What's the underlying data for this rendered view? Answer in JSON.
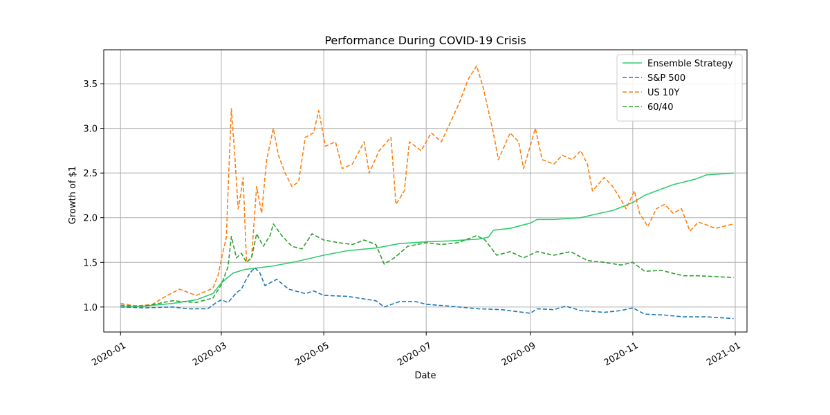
{
  "chart_data": {
    "type": "line",
    "title": "Performance During COVID-19 Crisis",
    "xlabel": "Date",
    "ylabel": "Growth of $1",
    "xlim": [
      "2019-12-22",
      "2021-01-08"
    ],
    "ylim": [
      0.72,
      3.88
    ],
    "x_ticks": [
      "2020-01-01",
      "2020-03-01",
      "2020-05-01",
      "2020-07-01",
      "2020-09-01",
      "2020-11-01",
      "2021-01-01"
    ],
    "x_tick_labels": [
      "2020-01",
      "2020-03",
      "2020-05",
      "2020-07",
      "2020-09",
      "2020-11",
      "2021-01"
    ],
    "y_ticks": [
      1.0,
      1.5,
      2.0,
      2.5,
      3.0,
      3.5
    ],
    "y_tick_labels": [
      "1.0",
      "1.5",
      "2.0",
      "2.5",
      "3.0",
      "3.5"
    ],
    "grid": true,
    "legend_position": "upper right",
    "series": [
      {
        "name": "Ensemble Strategy",
        "color": "#2ecc71",
        "dash": "solid",
        "points": [
          [
            "2020-01-01",
            1.0
          ],
          [
            "2020-01-15",
            1.01
          ],
          [
            "2020-02-01",
            1.04
          ],
          [
            "2020-02-15",
            1.08
          ],
          [
            "2020-02-25",
            1.15
          ],
          [
            "2020-03-01",
            1.27
          ],
          [
            "2020-03-08",
            1.38
          ],
          [
            "2020-03-15",
            1.42
          ],
          [
            "2020-04-01",
            1.46
          ],
          [
            "2020-04-15",
            1.51
          ],
          [
            "2020-05-01",
            1.58
          ],
          [
            "2020-05-15",
            1.63
          ],
          [
            "2020-06-01",
            1.66
          ],
          [
            "2020-06-15",
            1.71
          ],
          [
            "2020-07-01",
            1.73
          ],
          [
            "2020-07-15",
            1.74
          ],
          [
            "2020-08-01",
            1.76
          ],
          [
            "2020-08-07",
            1.78
          ],
          [
            "2020-08-10",
            1.86
          ],
          [
            "2020-08-20",
            1.88
          ],
          [
            "2020-09-01",
            1.94
          ],
          [
            "2020-09-05",
            1.98
          ],
          [
            "2020-09-15",
            1.98
          ],
          [
            "2020-10-01",
            2.0
          ],
          [
            "2020-10-10",
            2.04
          ],
          [
            "2020-10-20",
            2.08
          ],
          [
            "2020-11-01",
            2.17
          ],
          [
            "2020-11-08",
            2.25
          ],
          [
            "2020-11-15",
            2.3
          ],
          [
            "2020-11-25",
            2.37
          ],
          [
            "2020-12-08",
            2.43
          ],
          [
            "2020-12-15",
            2.48
          ],
          [
            "2020-12-31",
            2.5
          ]
        ]
      },
      {
        "name": "S&P 500",
        "color": "#1f77b4",
        "dash": "dashed",
        "points": [
          [
            "2020-01-01",
            1.0
          ],
          [
            "2020-01-15",
            0.99
          ],
          [
            "2020-02-01",
            1.0
          ],
          [
            "2020-02-10",
            0.98
          ],
          [
            "2020-02-22",
            0.98
          ],
          [
            "2020-02-27",
            1.05
          ],
          [
            "2020-03-01",
            1.08
          ],
          [
            "2020-03-05",
            1.05
          ],
          [
            "2020-03-10",
            1.16
          ],
          [
            "2020-03-13",
            1.2
          ],
          [
            "2020-03-15",
            1.28
          ],
          [
            "2020-03-18",
            1.38
          ],
          [
            "2020-03-21",
            1.44
          ],
          [
            "2020-03-24",
            1.38
          ],
          [
            "2020-03-27",
            1.24
          ],
          [
            "2020-03-31",
            1.28
          ],
          [
            "2020-04-03",
            1.31
          ],
          [
            "2020-04-10",
            1.2
          ],
          [
            "2020-04-20",
            1.15
          ],
          [
            "2020-04-25",
            1.18
          ],
          [
            "2020-05-01",
            1.13
          ],
          [
            "2020-05-15",
            1.12
          ],
          [
            "2020-06-01",
            1.07
          ],
          [
            "2020-06-06",
            1.0
          ],
          [
            "2020-06-15",
            1.06
          ],
          [
            "2020-06-25",
            1.06
          ],
          [
            "2020-07-01",
            1.03
          ],
          [
            "2020-07-15",
            1.01
          ],
          [
            "2020-08-01",
            0.98
          ],
          [
            "2020-08-15",
            0.97
          ],
          [
            "2020-09-01",
            0.93
          ],
          [
            "2020-09-05",
            0.98
          ],
          [
            "2020-09-15",
            0.97
          ],
          [
            "2020-09-22",
            1.01
          ],
          [
            "2020-10-01",
            0.96
          ],
          [
            "2020-10-15",
            0.94
          ],
          [
            "2020-10-25",
            0.96
          ],
          [
            "2020-11-01",
            0.99
          ],
          [
            "2020-11-08",
            0.92
          ],
          [
            "2020-11-20",
            0.91
          ],
          [
            "2020-12-01",
            0.89
          ],
          [
            "2020-12-15",
            0.89
          ],
          [
            "2020-12-31",
            0.87
          ]
        ]
      },
      {
        "name": "US 10Y",
        "color": "#ff7f0e",
        "dash": "dashed",
        "points": [
          [
            "2020-01-01",
            1.04
          ],
          [
            "2020-01-10",
            1.01
          ],
          [
            "2020-01-20",
            1.03
          ],
          [
            "2020-01-28",
            1.12
          ],
          [
            "2020-02-05",
            1.2
          ],
          [
            "2020-02-15",
            1.13
          ],
          [
            "2020-02-25",
            1.21
          ],
          [
            "2020-02-28",
            1.35
          ],
          [
            "2020-03-02",
            1.62
          ],
          [
            "2020-03-04",
            1.78
          ],
          [
            "2020-03-05",
            2.3
          ],
          [
            "2020-03-07",
            3.22
          ],
          [
            "2020-03-09",
            2.7
          ],
          [
            "2020-03-11",
            2.1
          ],
          [
            "2020-03-12",
            2.2
          ],
          [
            "2020-03-14",
            2.45
          ],
          [
            "2020-03-16",
            1.5
          ],
          [
            "2020-03-19",
            1.55
          ],
          [
            "2020-03-22",
            2.35
          ],
          [
            "2020-03-25",
            2.05
          ],
          [
            "2020-03-28",
            2.65
          ],
          [
            "2020-04-01",
            3.0
          ],
          [
            "2020-04-04",
            2.7
          ],
          [
            "2020-04-08",
            2.5
          ],
          [
            "2020-04-12",
            2.35
          ],
          [
            "2020-04-16",
            2.4
          ],
          [
            "2020-04-20",
            2.9
          ],
          [
            "2020-04-25",
            2.95
          ],
          [
            "2020-04-28",
            3.2
          ],
          [
            "2020-05-02",
            2.8
          ],
          [
            "2020-05-08",
            2.85
          ],
          [
            "2020-05-12",
            2.55
          ],
          [
            "2020-05-18",
            2.6
          ],
          [
            "2020-05-25",
            2.85
          ],
          [
            "2020-05-28",
            2.5
          ],
          [
            "2020-06-03",
            2.75
          ],
          [
            "2020-06-10",
            2.9
          ],
          [
            "2020-06-13",
            2.15
          ],
          [
            "2020-06-18",
            2.3
          ],
          [
            "2020-06-21",
            2.85
          ],
          [
            "2020-06-28",
            2.75
          ],
          [
            "2020-07-04",
            2.95
          ],
          [
            "2020-07-10",
            2.85
          ],
          [
            "2020-07-15",
            3.05
          ],
          [
            "2020-07-21",
            3.3
          ],
          [
            "2020-07-26",
            3.55
          ],
          [
            "2020-07-31",
            3.7
          ],
          [
            "2020-08-04",
            3.45
          ],
          [
            "2020-08-10",
            2.95
          ],
          [
            "2020-08-13",
            2.65
          ],
          [
            "2020-08-20",
            2.95
          ],
          [
            "2020-08-25",
            2.85
          ],
          [
            "2020-08-28",
            2.55
          ],
          [
            "2020-09-04",
            3.0
          ],
          [
            "2020-09-08",
            2.65
          ],
          [
            "2020-09-15",
            2.6
          ],
          [
            "2020-09-20",
            2.7
          ],
          [
            "2020-09-26",
            2.65
          ],
          [
            "2020-10-01",
            2.75
          ],
          [
            "2020-10-05",
            2.6
          ],
          [
            "2020-10-08",
            2.3
          ],
          [
            "2020-10-15",
            2.45
          ],
          [
            "2020-10-20",
            2.35
          ],
          [
            "2020-10-25",
            2.2
          ],
          [
            "2020-10-28",
            2.1
          ],
          [
            "2020-11-02",
            2.3
          ],
          [
            "2020-11-05",
            2.05
          ],
          [
            "2020-11-10",
            1.9
          ],
          [
            "2020-11-15",
            2.1
          ],
          [
            "2020-11-20",
            2.15
          ],
          [
            "2020-11-25",
            2.05
          ],
          [
            "2020-11-30",
            2.1
          ],
          [
            "2020-12-05",
            1.85
          ],
          [
            "2020-12-10",
            1.95
          ],
          [
            "2020-12-15",
            1.92
          ],
          [
            "2020-12-20",
            1.88
          ],
          [
            "2020-12-31",
            1.93
          ]
        ]
      },
      {
        "name": "60/40",
        "color": "#2ca02c",
        "dash": "dashed",
        "points": [
          [
            "2020-01-01",
            1.02
          ],
          [
            "2020-01-15",
            1.01
          ],
          [
            "2020-02-01",
            1.07
          ],
          [
            "2020-02-15",
            1.05
          ],
          [
            "2020-02-25",
            1.1
          ],
          [
            "2020-03-01",
            1.25
          ],
          [
            "2020-03-05",
            1.45
          ],
          [
            "2020-03-07",
            1.79
          ],
          [
            "2020-03-10",
            1.55
          ],
          [
            "2020-03-13",
            1.6
          ],
          [
            "2020-03-16",
            1.5
          ],
          [
            "2020-03-19",
            1.55
          ],
          [
            "2020-03-22",
            1.82
          ],
          [
            "2020-03-26",
            1.68
          ],
          [
            "2020-03-30",
            1.8
          ],
          [
            "2020-04-01",
            1.93
          ],
          [
            "2020-04-06",
            1.8
          ],
          [
            "2020-04-12",
            1.68
          ],
          [
            "2020-04-18",
            1.65
          ],
          [
            "2020-04-24",
            1.82
          ],
          [
            "2020-05-01",
            1.75
          ],
          [
            "2020-05-10",
            1.72
          ],
          [
            "2020-05-18",
            1.7
          ],
          [
            "2020-05-25",
            1.75
          ],
          [
            "2020-06-01",
            1.7
          ],
          [
            "2020-06-06",
            1.48
          ],
          [
            "2020-06-12",
            1.55
          ],
          [
            "2020-06-20",
            1.68
          ],
          [
            "2020-07-01",
            1.72
          ],
          [
            "2020-07-10",
            1.7
          ],
          [
            "2020-07-20",
            1.72
          ],
          [
            "2020-07-31",
            1.8
          ],
          [
            "2020-08-05",
            1.75
          ],
          [
            "2020-08-12",
            1.58
          ],
          [
            "2020-08-20",
            1.62
          ],
          [
            "2020-08-28",
            1.55
          ],
          [
            "2020-09-05",
            1.62
          ],
          [
            "2020-09-15",
            1.58
          ],
          [
            "2020-09-25",
            1.62
          ],
          [
            "2020-10-05",
            1.52
          ],
          [
            "2020-10-15",
            1.5
          ],
          [
            "2020-10-25",
            1.47
          ],
          [
            "2020-11-01",
            1.5
          ],
          [
            "2020-11-08",
            1.4
          ],
          [
            "2020-11-18",
            1.41
          ],
          [
            "2020-12-01",
            1.35
          ],
          [
            "2020-12-10",
            1.35
          ],
          [
            "2020-12-20",
            1.34
          ],
          [
            "2020-12-31",
            1.33
          ]
        ]
      }
    ]
  }
}
